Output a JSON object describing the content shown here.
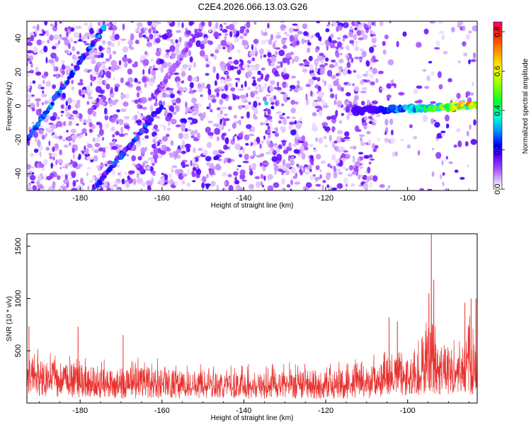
{
  "chart_data": [
    {
      "type": "heatmap",
      "title": "C2E4.2026.066.13.03.G26",
      "xlabel": "Height of straight line (km)",
      "ylabel": "Frequency (Hz)",
      "xlim": [
        -193,
        -83
      ],
      "ylim": [
        -50,
        50
      ],
      "x_ticks": [
        -180,
        -160,
        -140,
        -120,
        -100
      ],
      "x_tick_labels": [
        "-180",
        "-160",
        "-140",
        "-120",
        "-100"
      ],
      "y_ticks": [
        -40,
        -20,
        0,
        20,
        40
      ],
      "y_tick_labels": [
        "-40",
        "-20",
        "0",
        "20",
        "40"
      ],
      "colorbar": {
        "label": "Normalized spectral amplitude",
        "range": [
          0.0,
          0.85
        ],
        "ticks": [
          0.0,
          0.2,
          0.4,
          0.6,
          0.8
        ],
        "tick_labels": [
          "0.0",
          "0.2",
          "0.4",
          "0.6",
          "0.8"
        ]
      },
      "features": [
        {
          "name": "diagonal-trace-left",
          "x_start": -193,
          "y_start": -20,
          "x_end": -174,
          "y_end": 47,
          "peak_amplitude": 0.35
        },
        {
          "name": "diagonal-trace-lower",
          "x_start": -177,
          "y_start": -50,
          "x_end": -160,
          "y_end": 0,
          "peak_amplitude": 0.3
        },
        {
          "name": "diagonal-trace-faint",
          "x_start": -162,
          "y_start": 5,
          "x_end": -150,
          "y_end": 48,
          "peak_amplitude": 0.15
        },
        {
          "name": "zero-frequency-line",
          "x_start": -113,
          "y_start": -4,
          "x_end": -83,
          "y_end": 1,
          "peak_amplitude": 0.8
        }
      ]
    },
    {
      "type": "line",
      "title": "",
      "xlabel": "Height of straight line (km)",
      "ylabel": "SNR (10 * v/v)",
      "xlim": [
        -193,
        -83
      ],
      "ylim": [
        0,
        1620
      ],
      "x_ticks": [
        -180,
        -160,
        -140,
        -120,
        -100
      ],
      "x_tick_labels": [
        "-180",
        "-160",
        "-140",
        "-120",
        "-100"
      ],
      "y_ticks": [
        500,
        1000,
        1500
      ],
      "y_tick_labels": [
        "500",
        "1000",
        "1500"
      ],
      "color": "#e8322f",
      "envelope": {
        "x": [
          -193,
          -191,
          -189,
          -187,
          -185,
          -183,
          -181,
          -179,
          -175,
          -170,
          -165,
          -160,
          -155,
          -150,
          -145,
          -140,
          -135,
          -130,
          -125,
          -120,
          -115,
          -110,
          -107,
          -105,
          -103,
          -101,
          -99,
          -97,
          -96,
          -95,
          -94,
          -93,
          -92,
          -91,
          -90,
          -89,
          -88,
          -87,
          -86,
          -85,
          -84,
          -83
        ],
        "low": [
          60,
          70,
          60,
          70,
          60,
          60,
          50,
          40,
          40,
          40,
          40,
          40,
          40,
          40,
          40,
          40,
          40,
          40,
          40,
          40,
          40,
          40,
          50,
          60,
          60,
          60,
          70,
          70,
          80,
          80,
          80,
          80,
          80,
          70,
          70,
          70,
          70,
          70,
          80,
          80,
          80,
          90
        ],
        "high": [
          560,
          620,
          480,
          520,
          500,
          470,
          520,
          470,
          420,
          440,
          460,
          420,
          400,
          380,
          360,
          380,
          370,
          390,
          400,
          420,
          410,
          440,
          480,
          560,
          640,
          560,
          520,
          620,
          760,
          1040,
          820,
          700,
          680,
          720,
          700,
          640,
          620,
          680,
          760,
          900,
          720,
          560
        ]
      },
      "peaks": [
        {
          "x": -192.5,
          "y": 735
        },
        {
          "x": -180.5,
          "y": 730
        },
        {
          "x": -169.5,
          "y": 650
        },
        {
          "x": -104.5,
          "y": 820
        },
        {
          "x": -102.5,
          "y": 780
        },
        {
          "x": -94.8,
          "y": 1050
        },
        {
          "x": -94.2,
          "y": 1620
        },
        {
          "x": -93.6,
          "y": 1180
        },
        {
          "x": -86,
          "y": 960
        },
        {
          "x": -84.5,
          "y": 1000
        },
        {
          "x": -83.3,
          "y": 1000
        }
      ]
    }
  ]
}
